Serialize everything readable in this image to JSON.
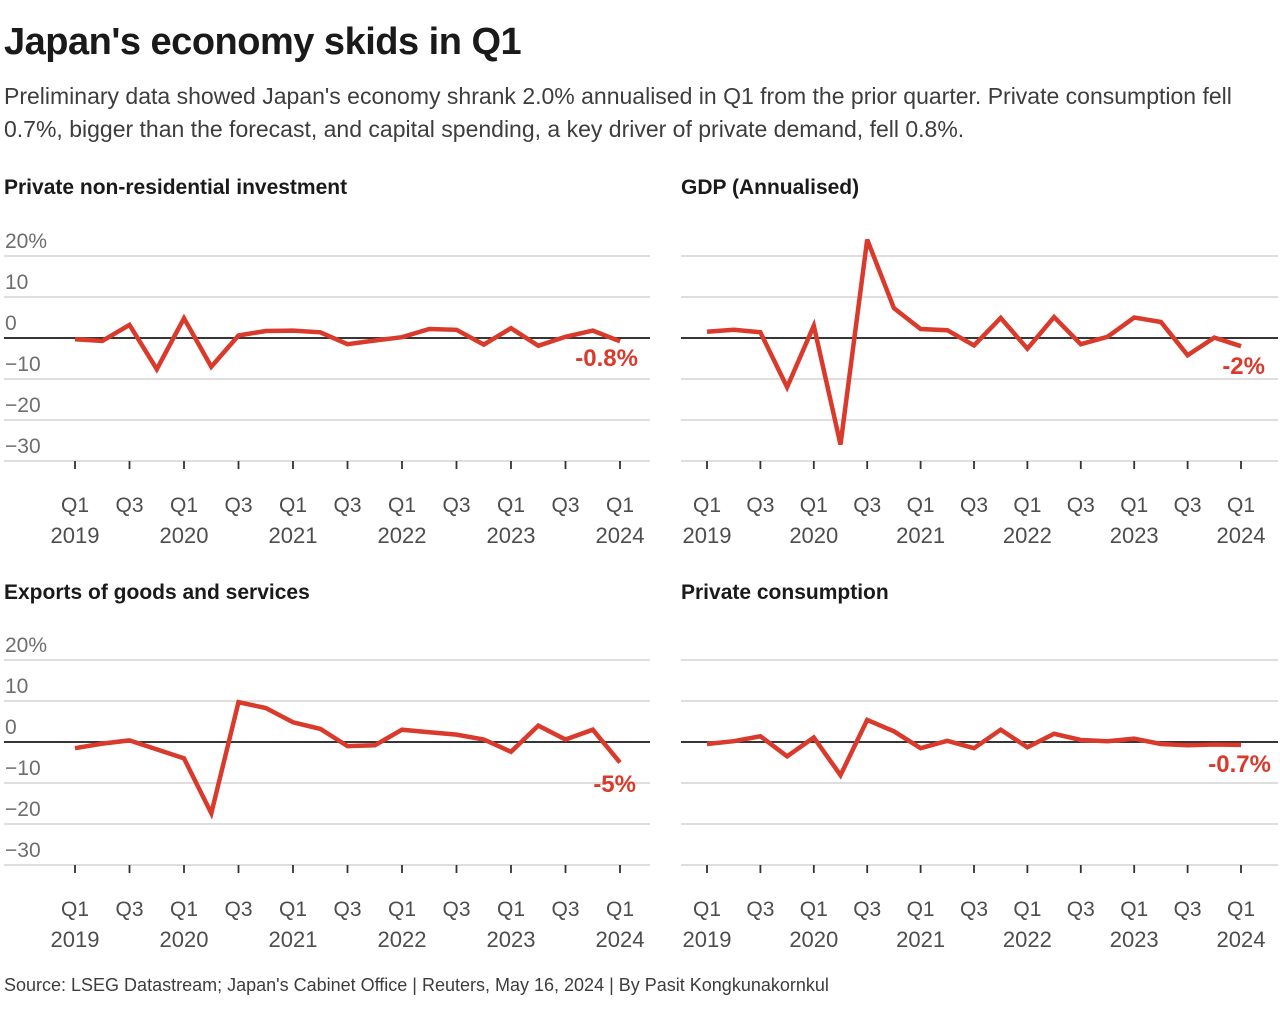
{
  "header": {
    "title": "Japan's economy skids in Q1",
    "subtitle": "Preliminary data showed Japan's economy shrank 2.0% annualised in Q1 from the prior quarter. Private consumption fell 0.7%, bigger than the forecast, and capital spending, a key driver of private demand, fell 0.8%."
  },
  "source_line": "Source: LSEG Datastream; Japan's Cabinet Office | Reuters, May 16, 2024 | By Pasit Kongkunakornkul",
  "colors": {
    "line_red": "#d93a2b",
    "zero_axis": "#1a1a1a",
    "gridline": "#c9c9c9",
    "y_label": "#6e6e6e",
    "x_label": "#4d4d4d",
    "tick": "#333333"
  },
  "chart_data": {
    "type": "line",
    "grid": "horizontal",
    "legend": "none",
    "ylim": [
      -35,
      25
    ],
    "y_tick_values": [
      20,
      10,
      0,
      -10,
      -20,
      -30
    ],
    "y_tick_labels": [
      "20%",
      "10",
      "0",
      "−10",
      "−20",
      "−30"
    ],
    "x_ticks": [
      {
        "q": "Q1",
        "year": "2019"
      },
      {
        "q": "Q3"
      },
      {
        "q": "Q1",
        "year": "2020"
      },
      {
        "q": "Q3"
      },
      {
        "q": "Q1",
        "year": "2021"
      },
      {
        "q": "Q3"
      },
      {
        "q": "Q1",
        "year": "2022"
      },
      {
        "q": "Q3"
      },
      {
        "q": "Q1",
        "year": "2023"
      },
      {
        "q": "Q3"
      },
      {
        "q": "Q1",
        "year": "2024"
      }
    ],
    "categories": [
      "Q1 2019",
      "Q2 2019",
      "Q3 2019",
      "Q4 2019",
      "Q1 2020",
      "Q2 2020",
      "Q3 2020",
      "Q4 2020",
      "Q1 2021",
      "Q2 2021",
      "Q3 2021",
      "Q4 2021",
      "Q1 2022",
      "Q2 2022",
      "Q3 2022",
      "Q4 2022",
      "Q1 2023",
      "Q2 2023",
      "Q3 2023",
      "Q4 2023",
      "Q1 2024"
    ],
    "unit": "% change from prior quarter",
    "charts": [
      {
        "title": "Private non-residential investment",
        "annotation": "-0.8%",
        "last_value_label": "-0.8%",
        "values": [
          -0.3,
          -0.7,
          3.2,
          -7.6,
          4.8,
          -7.0,
          0.6,
          1.7,
          1.8,
          1.4,
          -1.5,
          -0.6,
          0.2,
          2.2,
          2.0,
          -1.6,
          2.4,
          -1.9,
          0.3,
          1.8,
          -0.8
        ]
      },
      {
        "title": "GDP (Annualised)",
        "annotation": "-2%",
        "last_value_label": "-2%",
        "values": [
          1.5,
          2.0,
          1.4,
          -12.0,
          3.0,
          -26.0,
          24.0,
          7.3,
          2.2,
          1.9,
          -1.8,
          4.9,
          -2.6,
          5.1,
          -1.5,
          0.3,
          5.0,
          3.9,
          -4.2,
          0.1,
          -2.0
        ]
      },
      {
        "title": "Exports of goods and services",
        "annotation": "-5%",
        "last_value_label": "-5%",
        "values": [
          -1.5,
          -0.4,
          0.4,
          -1.8,
          -4.0,
          -17.4,
          9.7,
          8.3,
          4.8,
          3.2,
          -1.0,
          -0.8,
          3.0,
          2.4,
          1.8,
          0.6,
          -2.4,
          4.0,
          0.6,
          3.0,
          -5.0
        ]
      },
      {
        "title": "Private consumption",
        "annotation": "-0.7%",
        "last_value_label": "-0.7%",
        "values": [
          -0.5,
          0.2,
          1.4,
          -3.5,
          1.1,
          -8.1,
          5.4,
          2.6,
          -1.5,
          0.3,
          -1.5,
          3.0,
          -1.3,
          2.0,
          0.5,
          0.2,
          0.8,
          -0.5,
          -0.8,
          -0.6,
          -0.7
        ]
      }
    ]
  }
}
